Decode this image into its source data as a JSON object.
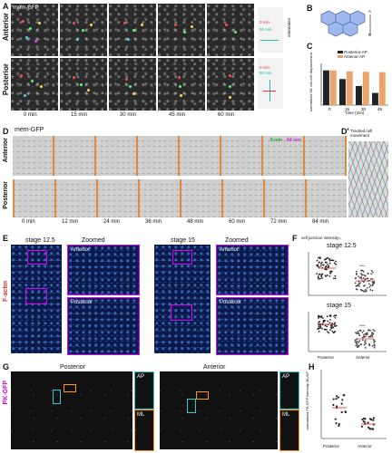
{
  "panelA": {
    "label": "A",
    "stain": "mem-GFP",
    "rows": [
      "Anterior",
      "Posterior"
    ],
    "times": [
      "0 min",
      "15 min",
      "30 min",
      "45 min",
      "60 min"
    ],
    "legend_anterior": [
      "0 min",
      "60 min"
    ],
    "legend_posterior": [
      "0 min",
      "60 min"
    ],
    "axis_label": "orientation"
  },
  "panelB": {
    "label": "B",
    "axis": [
      "A",
      "P"
    ]
  },
  "panelC": {
    "label": "C",
    "ylabel": "normalized ML cell-cell displacement",
    "xlabel": "Time (min)",
    "legend": [
      "Posterior-AP",
      "Anterior-AP"
    ],
    "chart_data": {
      "type": "bar",
      "categories": [
        "0",
        "15",
        "30",
        "45"
      ],
      "series": [
        {
          "name": "Posterior-AP",
          "values": [
            1.0,
            0.75,
            0.55,
            0.35
          ]
        },
        {
          "name": "Anterior-AP",
          "values": [
            1.0,
            0.97,
            0.96,
            0.95
          ]
        }
      ],
      "ylim": [
        0,
        1.2
      ]
    }
  },
  "panelD": {
    "label": "D",
    "label2": "D'",
    "stain": "mem-GFP",
    "rows": [
      "Anterior",
      "Posterior"
    ],
    "times": [
      "0 min",
      "12 min",
      "24 min",
      "36 min",
      "48 min",
      "60 min",
      "72 min",
      "84 min"
    ],
    "legend": [
      "0 min",
      "84 min"
    ],
    "tracked": "Tracked cell movement"
  },
  "panelE": {
    "label": "E",
    "stain": "F-actin",
    "stage1": "stage 12.5",
    "stage2": "stage 15",
    "zoomed": "Zoomed",
    "anterior": "Anterior",
    "posterior": "Posterior",
    "axis": [
      "A",
      "P"
    ]
  },
  "panelF": {
    "label": "F",
    "header": "cell junction intensity=",
    "stage1": "stage 12.5",
    "stage2": "stage 15",
    "ylabel": "normalized ML junction/AP junction intensity",
    "groups": [
      "Posterior",
      "Anterior"
    ],
    "sig": "****"
  },
  "panelG": {
    "label": "G",
    "stain": "PK-GFP",
    "posterior": "Posterior",
    "anterior": "Anterior",
    "insets": [
      "AP",
      "ML"
    ]
  },
  "panelH": {
    "label": "H",
    "ylabel": "normalized PK-GFP intensity ML/AP",
    "groups": [
      "Posterior",
      "Anterior"
    ]
  }
}
